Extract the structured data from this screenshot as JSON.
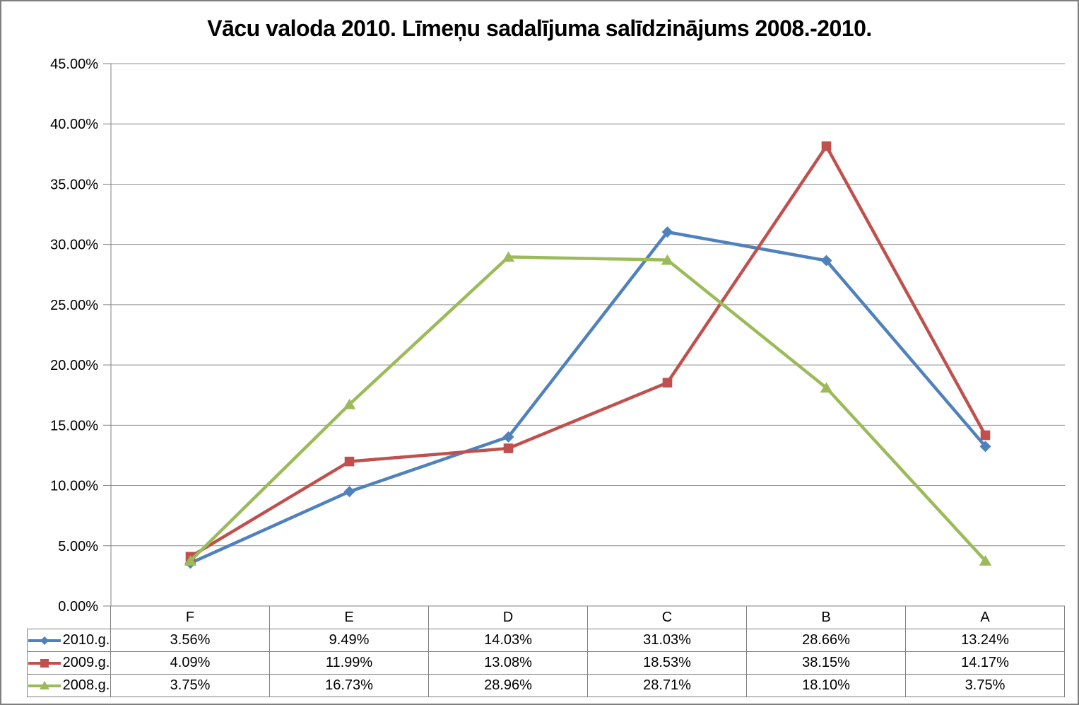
{
  "window": {
    "background": "#FFFFFF",
    "border_color": "#7F7F7F"
  },
  "chart_data": {
    "type": "line",
    "title": "Vācu valoda 2010. Līmeņu sadalījuma salīdzinājums 2008.-2010.",
    "categories": [
      "F",
      "E",
      "D",
      "C",
      "B",
      "A"
    ],
    "series": [
      {
        "name": "2010.g.",
        "color": "#4F81BD",
        "marker": "diamond",
        "values": [
          3.56,
          9.49,
          14.03,
          31.03,
          28.66,
          13.24
        ],
        "labels": [
          "3.56%",
          "9.49%",
          "14.03%",
          "31.03%",
          "28.66%",
          "13.24%"
        ]
      },
      {
        "name": "2009.g.",
        "color": "#C0504D",
        "marker": "square",
        "values": [
          4.09,
          11.99,
          13.08,
          18.53,
          38.15,
          14.17
        ],
        "labels": [
          "4.09%",
          "11.99%",
          "13.08%",
          "18.53%",
          "38.15%",
          "14.17%"
        ]
      },
      {
        "name": "2008.g.",
        "color": "#9BBB59",
        "marker": "triangle",
        "values": [
          3.75,
          16.73,
          28.96,
          28.71,
          18.1,
          3.75
        ],
        "labels": [
          "3.75%",
          "16.73%",
          "28.96%",
          "28.71%",
          "18.10%",
          "3.75%"
        ]
      }
    ],
    "y_axis": {
      "min": 0,
      "max": 45,
      "step": 5,
      "tick_labels": [
        "0.00%",
        "5.00%",
        "10.00%",
        "15.00%",
        "20.00%",
        "25.00%",
        "30.00%",
        "35.00%",
        "40.00%",
        "45.00%"
      ]
    },
    "xlabel": "",
    "ylabel": "",
    "grid": true,
    "legend_position": "data-table-left",
    "colors": {
      "gridline": "#8E8E8E",
      "axis": "#808080",
      "table_border": "#808080",
      "text": "#000000"
    }
  }
}
